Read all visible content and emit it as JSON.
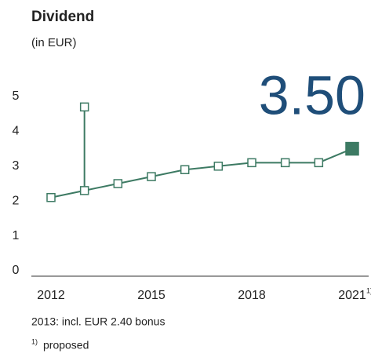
{
  "chart_data": {
    "type": "line",
    "title": "Dividend",
    "subtitle": "(in EUR)",
    "headline": "3.50",
    "x": [
      2012,
      2013,
      2014,
      2015,
      2016,
      2017,
      2018,
      2019,
      2020,
      2021
    ],
    "series": [
      {
        "name": "Dividend",
        "color": "#3d7a63",
        "values": [
          2.1,
          2.3,
          2.5,
          2.7,
          2.9,
          3.0,
          3.1,
          3.1,
          3.1,
          3.5
        ]
      }
    ],
    "bonus": {
      "x": 2013,
      "value": 2.4
    },
    "proposed": [
      2021
    ],
    "footnote_mark": "1)",
    "xlim": [
      2012,
      2021
    ],
    "xticks": [
      2012,
      2015,
      2018,
      2021
    ],
    "ylim": [
      0,
      5
    ],
    "yticks": [
      0,
      1,
      2,
      3,
      4,
      5
    ],
    "notes": [
      "2013: incl. EUR 2.40 bonus"
    ],
    "footnote": "proposed",
    "headline_color": "#1f4e79"
  }
}
